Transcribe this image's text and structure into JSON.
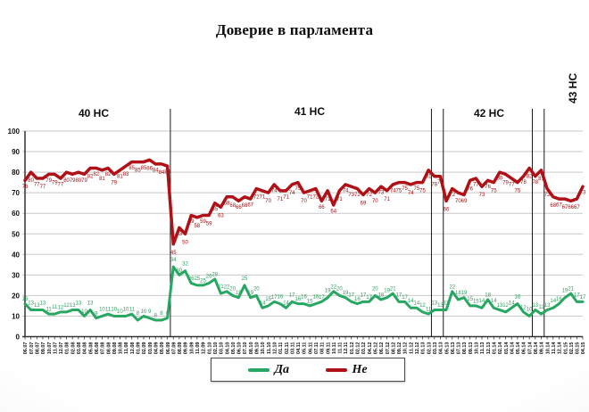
{
  "title": "Доверие в парламента",
  "chart_data": {
    "type": "line",
    "title": "Доверие в парламента",
    "xlabel": "",
    "ylabel": "",
    "ylim": [
      0,
      100
    ],
    "yticks": [
      0,
      10,
      20,
      30,
      40,
      50,
      60,
      70,
      80,
      90,
      100
    ],
    "grid": true,
    "legend_position": "bottom",
    "point_labels": true,
    "x": [
      "06.07",
      "07.07",
      "08.07",
      "09.07",
      "10.07",
      "11.07",
      "12.07",
      "01.08",
      "02.08",
      "03.08",
      "04.08",
      "05.08",
      "06.08",
      "07.08",
      "08.08",
      "09.08",
      "10.08",
      "11.08",
      "12.08",
      "01.09",
      "02.09",
      "03.09",
      "04.09",
      "05.09",
      "06.09",
      "07.09",
      "08.09",
      "09.09",
      "10.09",
      "11.09",
      "12.09",
      "01.10",
      "02.10",
      "03.10",
      "04.10",
      "05.10",
      "06.10",
      "07.10",
      "08.10",
      "09.10",
      "10.10",
      "11.10",
      "12.10",
      "01.11",
      "02.11",
      "03.11",
      "04.11",
      "05.11",
      "06.11",
      "07.11",
      "08.11",
      "09.11",
      "10.11",
      "11.11",
      "12.11",
      "01.12",
      "02.12",
      "03.12",
      "04.12",
      "05.12",
      "06.12",
      "07.12",
      "08.12",
      "09.12",
      "10.12",
      "11.12",
      "12.12",
      "01.13",
      "02.13",
      "03.13",
      "04.13",
      "05.13",
      "06.13",
      "07.13",
      "08.13",
      "09.13",
      "10.13",
      "11.13",
      "12.13",
      "01.14",
      "02.14",
      "03.14",
      "04.14",
      "05.14",
      "06.14",
      "07.14",
      "08.14",
      "09.14",
      "10.14",
      "11.14",
      "12.14",
      "01.15",
      "02.15",
      "03.15",
      "04.15"
    ],
    "series": [
      {
        "name": "Да",
        "color": "#27a862",
        "label_color": "#2f9e5f",
        "values": [
          16,
          13,
          13,
          13,
          11,
          11,
          12,
          12,
          13,
          13,
          10,
          13,
          9,
          10,
          11,
          10,
          10,
          10,
          11,
          8,
          10,
          9,
          8,
          8,
          9,
          34,
          30,
          32,
          26,
          25,
          25,
          26,
          28,
          21,
          22,
          20,
          19,
          25,
          19,
          20,
          14,
          15,
          17,
          16,
          14,
          17,
          16,
          16,
          15,
          16,
          17,
          19,
          22,
          20,
          19,
          17,
          16,
          17,
          17,
          20,
          18,
          19,
          21,
          17,
          17,
          14,
          14,
          12,
          11,
          13,
          13,
          13,
          22,
          18,
          19,
          15,
          15,
          14,
          18,
          14,
          13,
          12,
          14,
          16,
          12,
          10,
          13,
          11,
          13,
          14,
          16,
          19,
          21,
          17,
          17
        ]
      },
      {
        "name": "Не",
        "color": "#b01116",
        "label_color": "#a31014",
        "values": [
          76,
          80,
          77,
          77,
          79,
          79,
          77,
          80,
          79,
          80,
          79,
          82,
          82,
          81,
          82,
          79,
          81,
          83,
          85,
          85,
          85,
          86,
          84,
          84,
          83,
          45,
          53,
          50,
          59,
          58,
          59,
          59,
          65,
          63,
          68,
          68,
          66,
          68,
          67,
          72,
          71,
          70,
          74,
          71,
          71,
          74,
          75,
          70,
          71,
          72,
          66,
          71,
          64,
          71,
          74,
          73,
          72,
          69,
          72,
          70,
          73,
          71,
          74,
          75,
          75,
          74,
          75,
          75,
          81,
          78,
          78,
          66,
          72,
          70,
          69,
          76,
          77,
          73,
          76,
          75,
          80,
          79,
          77,
          75,
          78,
          82,
          78,
          81,
          72,
          68,
          67,
          67,
          66,
          67,
          73
        ]
      }
    ],
    "sections": [
      {
        "label": "40 НС"
      },
      {
        "label": "41 НС"
      },
      {
        "label": "42 НС"
      },
      {
        "label": "43 НС"
      }
    ],
    "dividers": [
      24.5,
      68.5,
      70.5,
      85.5,
      87.5
    ]
  }
}
